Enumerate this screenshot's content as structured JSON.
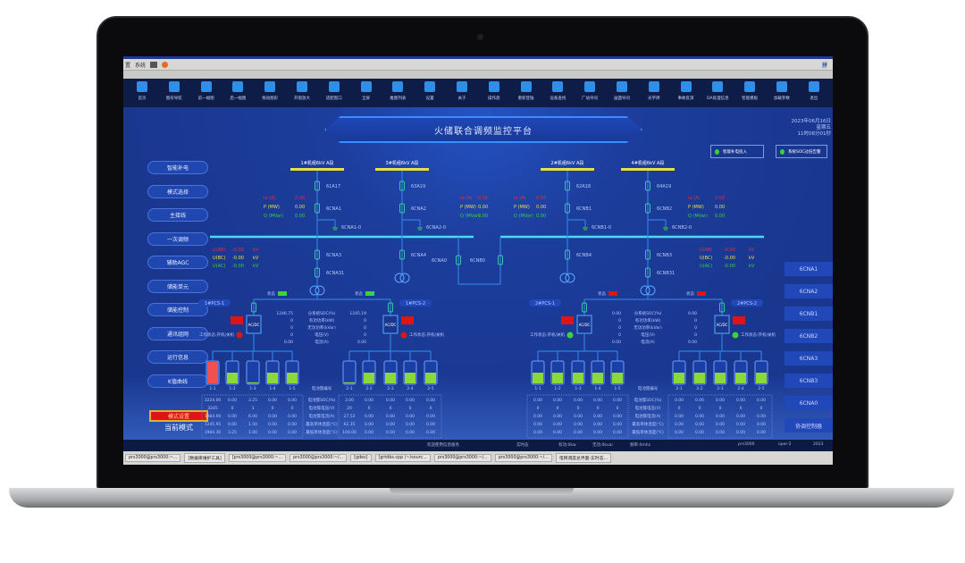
{
  "os": {
    "menu": [
      "置",
      "系统"
    ],
    "ime": "拼"
  },
  "toolbar": {
    "items": [
      "首页",
      "图形导航",
      "前一幅图",
      "后一幅图",
      "拖动图形",
      "开窗放大",
      "适配窗口",
      "全屏",
      "推图列表",
      "设置",
      "关于",
      "操作盘",
      "重新登陆",
      "设备查找",
      "厂站导问",
      "画面导问",
      "光字牌",
      "事故反演",
      "DA处理信息",
      "智能模板",
      "加载参数",
      "退出"
    ]
  },
  "header": {
    "title": "火储联合调频监控平台",
    "date": "2023年06月16日",
    "weekday": "星期五",
    "time": "11时08分01秒",
    "indicators": [
      {
        "label": "智能补电投入",
        "color": "#38d43a"
      },
      {
        "label": "系统SOC过低告警",
        "color": "#38d43a"
      }
    ]
  },
  "left_nav": [
    "智能补电",
    "模式选择",
    "主接线",
    "一次调频",
    "辅助AGC",
    "储能单元",
    "储能控制",
    "通讯组网",
    "运行信息",
    "K值曲线"
  ],
  "mode": {
    "button": "模式设置",
    "current": "当前模式"
  },
  "right_nav": [
    "6CNA1",
    "6CNA2",
    "6CNB1",
    "6CNB2",
    "6CNA3",
    "6CNB3",
    "6CNA0",
    "协调控制器"
  ],
  "diagram": {
    "columns": [
      {
        "bus": "1#机组6kV A段",
        "top": "61A17",
        "mid": "6CNA1",
        "gnd": "6CNA1-0",
        "low": [
          "6CNA3",
          "6CNA31"
        ]
      },
      {
        "bus": "3#机组6kV A段",
        "top": "63A19",
        "mid": "6CNA2",
        "gnd": "6CNA2-0",
        "low": [
          "6CNA4"
        ]
      },
      {
        "bus": "2#机组6kV A段",
        "top": "62A18",
        "mid": "6CNB1",
        "gnd": "6CNB1-0",
        "low": [
          "6CNB4"
        ]
      },
      {
        "bus": "4#机组6kV A段",
        "top": "64A19",
        "mid": "6CNB2",
        "gnd": "6CNB2-0",
        "low": [
          "6CNB3",
          "6CNB31"
        ]
      }
    ],
    "meas_labels": [
      "Ia (A)",
      "P (MW)",
      "Q (MVar)"
    ],
    "meas_values": [
      "0.00",
      "0.00",
      "0.00"
    ],
    "bus_meas": {
      "labels": [
        "U(AB)",
        "U(BC)",
        "U(AC)"
      ],
      "values": [
        "-0.00",
        "-0.00",
        "-0.00"
      ],
      "unit": "kV"
    },
    "tie": [
      "6CNA0",
      "6CNB0"
    ],
    "groups": [
      {
        "pcs": [
          "1#PCS-1",
          "1#PCS-2"
        ],
        "state_label": "状态",
        "state_color": "#38d43a",
        "fault_color": "#e01414",
        "work_label": "工作状态:开机/关机",
        "light": "#e01414",
        "metrics_labels": [
          "分系统SOC(%)",
          "有功功率(kW)",
          "无功功率(kVar)",
          "电压(V)",
          "电流(A)"
        ],
        "metrics_left": [
          "1246.75",
          "0",
          "0",
          "0",
          "0.00"
        ],
        "metrics_right": [
          "1245.19",
          "0",
          "0",
          "0",
          "0.00"
        ],
        "batteries": [
          {
            "id": "1-1",
            "level": 1.0,
            "alarm": true
          },
          {
            "id": "1-2",
            "level": 0.5
          },
          {
            "id": "1-3",
            "level": 0.05
          },
          {
            "id": "1-4",
            "level": 0.5
          },
          {
            "id": "1-5",
            "level": 0.5
          },
          {
            "id": "2-1",
            "level": 0.05
          },
          {
            "id": "2-2",
            "level": 0.5
          },
          {
            "id": "2-3",
            "level": 0.5
          },
          {
            "id": "2-4",
            "level": 0.5
          },
          {
            "id": "2-5",
            "level": 0.5
          }
        ],
        "table_header": "电池簇编号",
        "row_labels": [
          "电池簇SOC(%)",
          "电池簇电压(V)",
          "电池簇电流(A)",
          "最高单体温度(℃)",
          "最低单体温度(℃)"
        ],
        "table_left": [
          [
            "3224.00",
            "0.00",
            "3.25",
            "0.00",
            "0.00"
          ],
          [
            "3245",
            "0",
            "3",
            "0",
            "0"
          ],
          [
            "1984.00",
            "0.00",
            "6.00",
            "0.00",
            "0.00"
          ],
          [
            "1245.95",
            "0.00",
            "1.50",
            "0.00",
            "0.00"
          ],
          [
            "1984.30",
            "3.25",
            "1.00",
            "0.00",
            "0.00"
          ]
        ],
        "table_right": [
          [
            "3.00",
            "0.00",
            "0.00",
            "0.00",
            "0.00"
          ],
          [
            "20",
            "0",
            "0",
            "0",
            "0"
          ],
          [
            "27.53",
            "0.00",
            "0.00",
            "0.00",
            "0.00"
          ],
          [
            "62.35",
            "0.00",
            "0.00",
            "0.00",
            "0.00"
          ],
          [
            "100.00",
            "0.00",
            "0.00",
            "0.00",
            "0.00"
          ]
        ]
      },
      {
        "pcs": [
          "2#PCS-1",
          "2#PCS-2"
        ],
        "state_label": "状态",
        "state_color": "#e01414",
        "fault_color": "#e01414",
        "work_label": "工作状态:开机/关机",
        "light": "#38d43a",
        "metrics_labels": [
          "分系统SOC(%)",
          "有功功率(kW)",
          "无功功率(kVar)",
          "电压(V)",
          "电流(A)"
        ],
        "metrics_left": [
          "0.00",
          "0",
          "0",
          "0",
          "0.00"
        ],
        "metrics_right": [
          "0.00",
          "0",
          "0",
          "0",
          "0.00"
        ],
        "batteries": [
          {
            "id": "1-1",
            "level": 0.5
          },
          {
            "id": "1-2",
            "level": 0.5
          },
          {
            "id": "1-3",
            "level": 0.5
          },
          {
            "id": "1-4",
            "level": 0.5
          },
          {
            "id": "1-5",
            "level": 0.5
          },
          {
            "id": "2-1",
            "level": 0.5
          },
          {
            "id": "2-2",
            "level": 0.5
          },
          {
            "id": "2-3",
            "level": 0.5
          },
          {
            "id": "2-4",
            "level": 0.5
          },
          {
            "id": "2-5",
            "level": 0.5
          }
        ],
        "table_header": "电池簇编号",
        "row_labels": [
          "电池簇SOC(%)",
          "电池簇电压(V)",
          "电池簇电流(A)",
          "最高单体温度(℃)",
          "最低单体温度(℃)"
        ],
        "table_left": [
          [
            "0.00",
            "0.00",
            "0.00",
            "0.00",
            "0.00"
          ],
          [
            "0",
            "0",
            "0",
            "0",
            "0"
          ],
          [
            "0.00",
            "0.00",
            "0.00",
            "0.00",
            "0.00"
          ],
          [
            "0.00",
            "0.00",
            "0.00",
            "0.00",
            "0.00"
          ],
          [
            "0.00",
            "0.00",
            "0.00",
            "0.00",
            "0.00"
          ]
        ],
        "table_right": [
          [
            "0.00",
            "0.00",
            "0.00",
            "0.00",
            "0.00"
          ],
          [
            "0",
            "0",
            "0",
            "0",
            "0"
          ],
          [
            "0.00",
            "0.00",
            "0.00",
            "0.00",
            "0.00"
          ],
          [
            "0.00",
            "0.00",
            "0.00",
            "0.00",
            "0.00"
          ],
          [
            "0.00",
            "0.00",
            "0.00",
            "0.00",
            "0.00"
          ]
        ]
      }
    ]
  },
  "statusbar": {
    "welcome": "欢迎使用信息服务",
    "mode": "实时态",
    "active": "有功:0kw",
    "reactive": "无功:0kvar",
    "freq": "频率:0mhz",
    "user": "prs3000",
    "oper": "oper-2",
    "year": "2023"
  },
  "taskbar": [
    "prs3000@prs3000:~...",
    "[数据库维护工具]",
    "[prs3000@prs3000:~...",
    "prs3000@prs3000:~/...",
    "[gdes]",
    "[grtdbs.cpp (~/sourc...",
    "prs3000@prs3000:~/...",
    "prs3000@prs3000:~/...",
    "电网调度总界面-实时态..."
  ]
}
